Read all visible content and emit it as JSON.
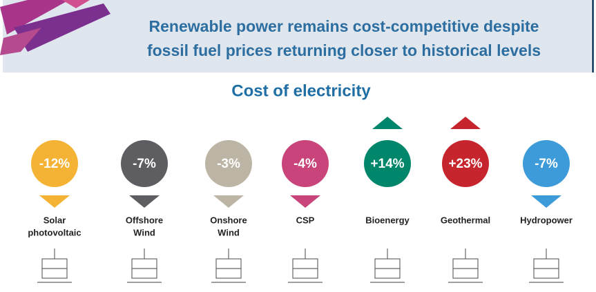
{
  "header": {
    "title_lines": [
      "Renewable power remains cost-competitive despite",
      "fossil fuel prices returning closer to historical levels"
    ]
  },
  "subtitle": "Cost of electricity",
  "items": [
    {
      "change": "-12%",
      "label_lines": [
        "Solar",
        "photovoltaic"
      ],
      "color": "#f4b334",
      "direction": "down"
    },
    {
      "change": "-7%",
      "label_lines": [
        "Offshore",
        "Wind"
      ],
      "color": "#5e5d62",
      "direction": "down"
    },
    {
      "change": "-3%",
      "label_lines": [
        "Onshore",
        "Wind"
      ],
      "color": "#bcb5a5",
      "direction": "down"
    },
    {
      "change": "-4%",
      "label_lines": [
        "CSP"
      ],
      "color": "#c8447a",
      "direction": "down"
    },
    {
      "change": "+14%",
      "label_lines": [
        "Bioenergy"
      ],
      "color": "#00876b",
      "direction": "up"
    },
    {
      "change": "+23%",
      "label_lines": [
        "Geothermal"
      ],
      "color": "#c7252d",
      "direction": "up"
    },
    {
      "change": "-7%",
      "label_lines": [
        "Hydropower"
      ],
      "color": "#3c9bd8",
      "direction": "down"
    }
  ]
}
